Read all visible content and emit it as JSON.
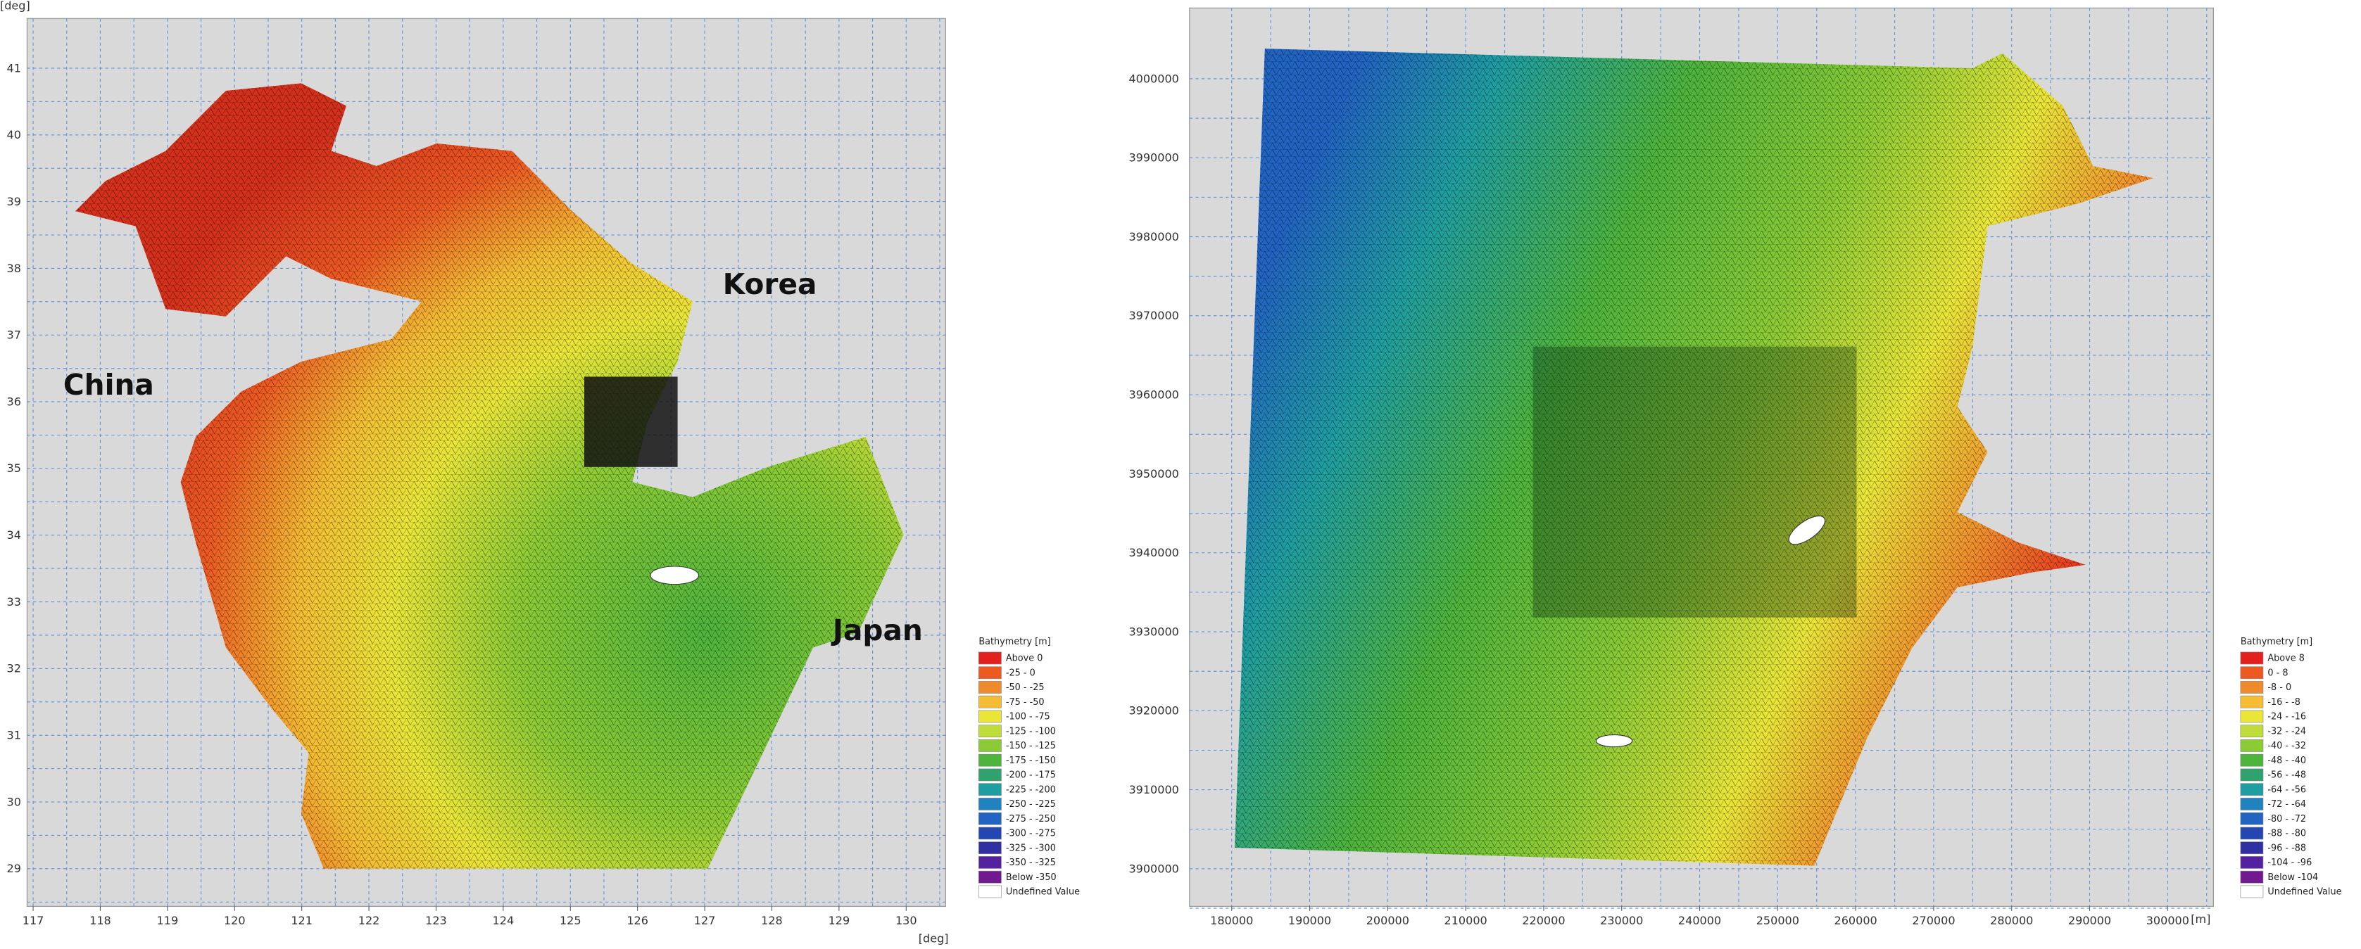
{
  "panels": [
    {
      "y_unit": "[deg]",
      "x_unit": "[deg]",
      "xticks": [
        117,
        118,
        119,
        120,
        121,
        122,
        123,
        124,
        125,
        126,
        127,
        128,
        129,
        130
      ],
      "yticks": [
        41,
        40,
        39,
        38,
        37,
        36,
        35,
        34,
        33,
        32,
        31,
        30,
        29
      ],
      "labels": [
        "China",
        "Korea",
        "Japan"
      ],
      "legend": {
        "title": "Bathymetry [m]",
        "items": [
          {
            "label": "Above 0",
            "color": "#e3201b"
          },
          {
            "label": "-25 - 0",
            "color": "#ec5a22"
          },
          {
            "label": "-50 - -25",
            "color": "#f08b2c"
          },
          {
            "label": "-75 - -50",
            "color": "#f4bd33"
          },
          {
            "label": "-100 - -75",
            "color": "#e9e638"
          },
          {
            "label": "-125 - -100",
            "color": "#bedd3b"
          },
          {
            "label": "-150 - -125",
            "color": "#8bcb35"
          },
          {
            "label": "-175 - -150",
            "color": "#4db43c"
          },
          {
            "label": "-200 - -175",
            "color": "#2fa26e"
          },
          {
            "label": "-225 - -200",
            "color": "#1f9ea1"
          },
          {
            "label": "-250 - -225",
            "color": "#1f83c0"
          },
          {
            "label": "-275 - -250",
            "color": "#2164c2"
          },
          {
            "label": "-300 - -275",
            "color": "#2446b2"
          },
          {
            "label": "-325 - -300",
            "color": "#3030a2"
          },
          {
            "label": "-350 - -325",
            "color": "#5421a0"
          },
          {
            "label": "Below -350",
            "color": "#721891"
          },
          {
            "label": "Undefined Value",
            "color": "#ffffff"
          }
        ]
      }
    },
    {
      "x_unit": "[m]",
      "xticks": [
        180000,
        190000,
        200000,
        210000,
        220000,
        230000,
        240000,
        250000,
        260000,
        270000,
        280000,
        290000,
        300000
      ],
      "yticks": [
        4000000,
        3990000,
        3980000,
        3970000,
        3960000,
        3950000,
        3940000,
        3930000,
        3920000,
        3910000,
        3900000
      ],
      "legend": {
        "title": "Bathymetry [m]",
        "items": [
          {
            "label": "Above 8",
            "color": "#e3201b"
          },
          {
            "label": "0 - 8",
            "color": "#ec5a22"
          },
          {
            "label": "-8 - 0",
            "color": "#f08b2c"
          },
          {
            "label": "-16 - -8",
            "color": "#f4bd33"
          },
          {
            "label": "-24 - -16",
            "color": "#e9e638"
          },
          {
            "label": "-32 - -24",
            "color": "#bedd3b"
          },
          {
            "label": "-40 - -32",
            "color": "#8bcb35"
          },
          {
            "label": "-48 - -40",
            "color": "#4db43c"
          },
          {
            "label": "-56 - -48",
            "color": "#2fa26e"
          },
          {
            "label": "-64 - -56",
            "color": "#1f9ea1"
          },
          {
            "label": "-72 - -64",
            "color": "#1f83c0"
          },
          {
            "label": "-80 - -72",
            "color": "#2164c2"
          },
          {
            "label": "-88 - -80",
            "color": "#2446b2"
          },
          {
            "label": "-96 - -88",
            "color": "#3030a2"
          },
          {
            "label": "-104 - -96",
            "color": "#5421a0"
          },
          {
            "label": "Below -104",
            "color": "#721891"
          },
          {
            "label": "Undefined Value",
            "color": "#ffffff"
          }
        ]
      }
    }
  ]
}
